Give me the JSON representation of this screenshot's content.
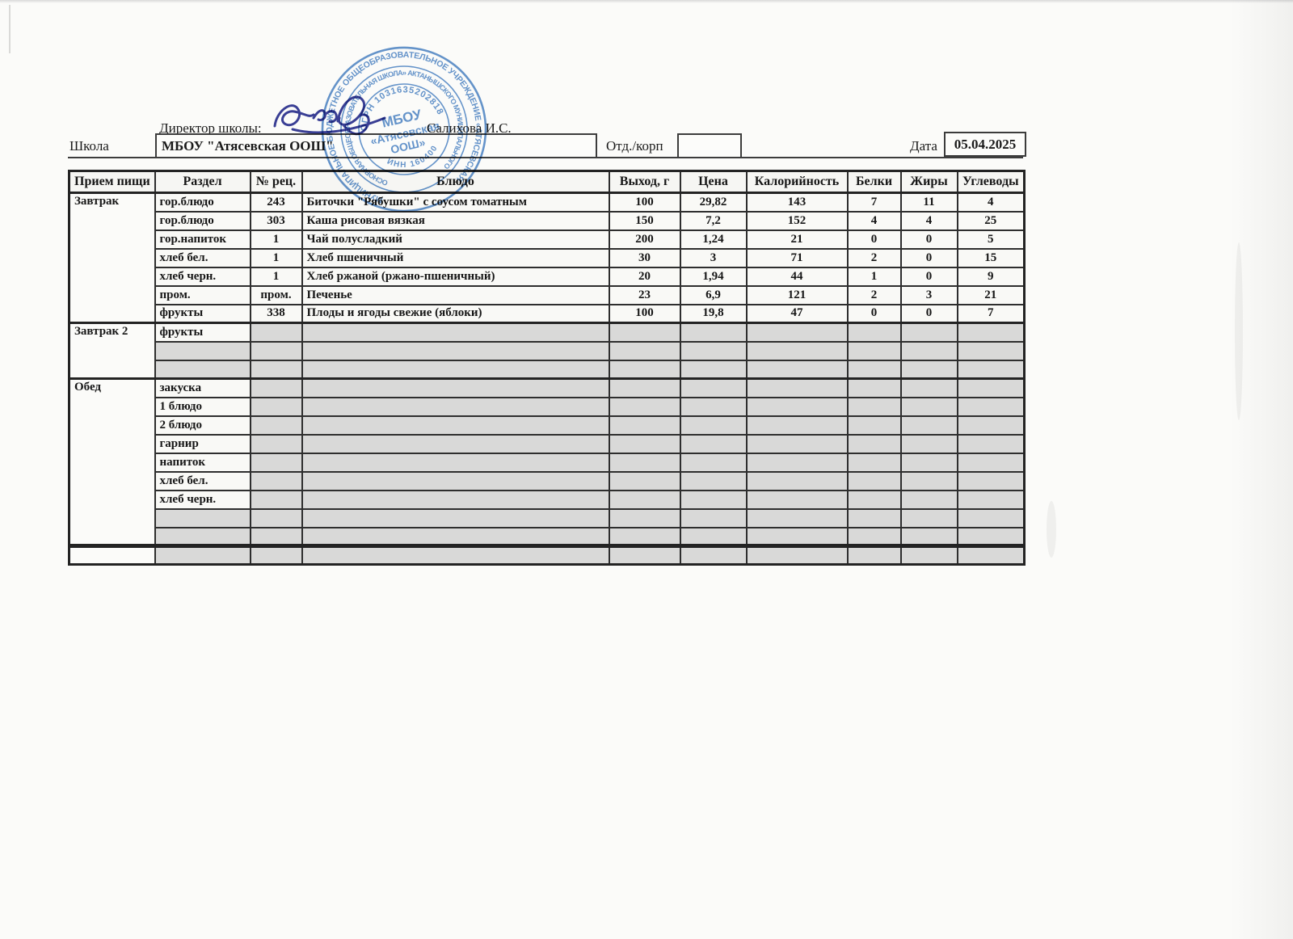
{
  "form": {
    "director_label": "Директор школы:",
    "director_name": "Салихова И.С.",
    "school_label": "Школа",
    "school_value": "МБОУ \"Атясевская ООШ\"",
    "dept_label": "Отд./корп",
    "dept_value": "",
    "date_label": "Дата",
    "date_value": "05.04.2025"
  },
  "stamp": {
    "ring_outer": "МУНИЦИПАЛЬНОЕ БЮДЖЕТНОЕ ОБЩЕОБРАЗОВАТЕЛЬНОЕ УЧРЕЖДЕНИЕ «АТЯСЕВСКАЯ",
    "ring_middle": "ОСНОВНАЯ ОБЩЕОБРАЗОВАТЕЛЬНАЯ ШКОЛА» АКТАНЫШСКОГО МУНИЦИПАЛЬНОГО",
    "ogrn": "ОГРН 1031635202818",
    "inn": "ИНН 1604005890",
    "center_line1": "МБОУ",
    "center_line2": "«Атясевская",
    "center_line3": "ООШ»"
  },
  "table": {
    "headers": [
      "Прием пищи",
      "Раздел",
      "№ рец.",
      "Блюдо",
      "Выход, г",
      "Цена",
      "Калорийность",
      "Белки",
      "Жиры",
      "Углеводы"
    ],
    "sections": [
      {
        "meal": "Завтрак",
        "rows": [
          {
            "razdel": "гор.блюдо",
            "rec": "243",
            "dish": "Биточки \"Рябушки\" с соусом томатным",
            "out_g": "100",
            "price": "29,82",
            "kcal": "143",
            "protein": "7",
            "fat": "11",
            "carbs": "4"
          },
          {
            "razdel": "гор.блюдо",
            "rec": "303",
            "dish": "Каша рисовая вязкая",
            "out_g": "150",
            "price": "7,2",
            "kcal": "152",
            "protein": "4",
            "fat": "4",
            "carbs": "25"
          },
          {
            "razdel": "гор.напиток",
            "rec": "1",
            "dish": "Чай полусладкий",
            "out_g": "200",
            "price": "1,24",
            "kcal": "21",
            "protein": "0",
            "fat": "0",
            "carbs": "5"
          },
          {
            "razdel": "хлеб бел.",
            "rec": "1",
            "dish": "Хлеб пшеничный",
            "out_g": "30",
            "price": "3",
            "kcal": "71",
            "protein": "2",
            "fat": "0",
            "carbs": "15"
          },
          {
            "razdel": "хлеб черн.",
            "rec": "1",
            "dish": "Хлеб ржаной (ржано-пшеничный)",
            "out_g": "20",
            "price": "1,94",
            "kcal": "44",
            "protein": "1",
            "fat": "0",
            "carbs": "9"
          },
          {
            "razdel": "пром.",
            "rec": "пром.",
            "dish": "Печенье",
            "out_g": "23",
            "price": "6,9",
            "kcal": "121",
            "protein": "2",
            "fat": "3",
            "carbs": "21"
          },
          {
            "razdel": "фрукты",
            "rec": "338",
            "dish": "Плоды и ягоды свежие (яблоки)",
            "out_g": "100",
            "price": "19,8",
            "kcal": "47",
            "protein": "0",
            "fat": "0",
            "carbs": "7"
          }
        ]
      },
      {
        "meal": "Завтрак 2",
        "rows": [
          {
            "razdel": "фрукты"
          },
          {},
          {}
        ]
      },
      {
        "meal": "Обед",
        "rows": [
          {
            "razdel": "закуска"
          },
          {
            "razdel": "1 блюдо"
          },
          {
            "razdel": "2 блюдо"
          },
          {
            "razdel": "гарнир"
          },
          {
            "razdel": "напиток"
          },
          {
            "razdel": "хлеб бел."
          },
          {
            "razdel": "хлеб черн."
          },
          {},
          {}
        ]
      },
      {
        "meal": "",
        "footer": true,
        "rows": [
          {}
        ]
      }
    ]
  }
}
